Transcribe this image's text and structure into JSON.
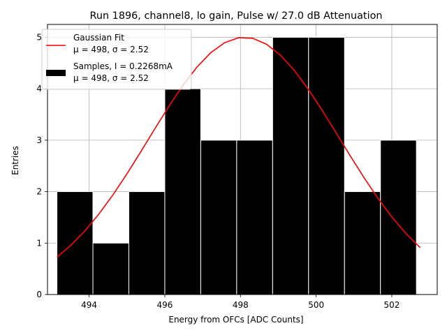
{
  "chart_data": {
    "type": "bar",
    "title": "Run 1896, channel8, lo gain, Pulse w/ 27.0 dB Attenuation",
    "xlabel": "Energy from OFCs [ADC Counts]",
    "ylabel": "Entries",
    "xlim": [
      492.9,
      503.2
    ],
    "ylim": [
      0,
      5.25
    ],
    "xticks": [
      494,
      496,
      498,
      500,
      502
    ],
    "yticks": [
      0,
      1,
      2,
      3,
      4,
      5
    ],
    "grid": true,
    "legend_position": "top-left",
    "bins": [
      {
        "left": 493.15,
        "right": 494.1,
        "count": 2
      },
      {
        "left": 494.1,
        "right": 495.05,
        "count": 1
      },
      {
        "left": 495.05,
        "right": 496.0,
        "count": 2
      },
      {
        "left": 496.0,
        "right": 496.95,
        "count": 4
      },
      {
        "left": 496.95,
        "right": 497.9,
        "count": 3
      },
      {
        "left": 497.9,
        "right": 498.85,
        "count": 3
      },
      {
        "left": 498.85,
        "right": 499.8,
        "count": 5
      },
      {
        "left": 499.8,
        "right": 500.75,
        "count": 5
      },
      {
        "left": 500.75,
        "right": 501.7,
        "count": 2
      },
      {
        "left": 501.7,
        "right": 502.65,
        "count": 3
      }
    ],
    "fit": {
      "amplitude": 5.0,
      "mean": 498.1,
      "sigma": 2.52,
      "x_range": [
        493.15,
        502.75
      ]
    },
    "series": [
      {
        "name": "Gaussian Fit",
        "stats": "μ = 498, σ = 2.52",
        "color": "#ff0000"
      },
      {
        "name": "Samples, I = 0.2268mA",
        "stats": "μ = 498, σ = 2.52",
        "color": "#000000"
      }
    ]
  }
}
